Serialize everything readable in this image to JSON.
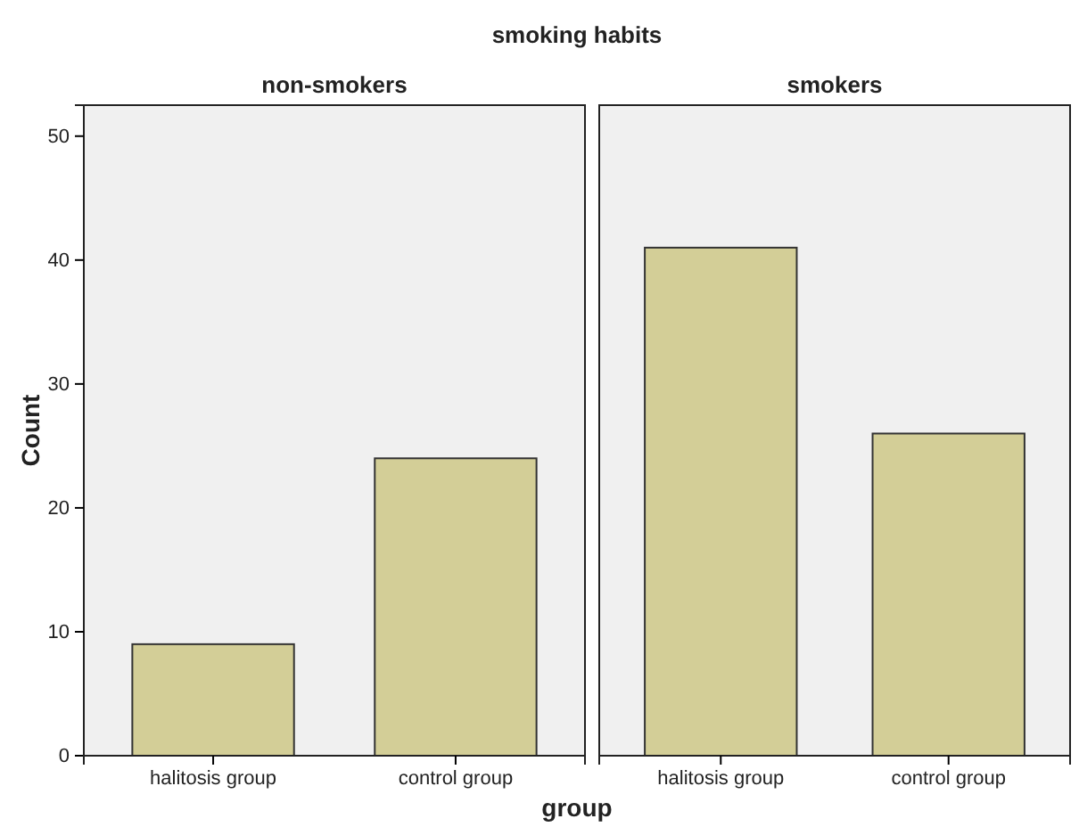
{
  "chart_data": [
    {
      "type": "bar",
      "title": "non-smokers",
      "annotations": [
        "smoking habits"
      ],
      "xlabel": "group",
      "ylabel": "Count",
      "categories": [
        "halitosis group",
        "control group"
      ],
      "values": [
        9,
        24
      ],
      "color": "#d3ce97",
      "ylim": [
        0,
        52.5
      ],
      "yticks": [
        0,
        10,
        20,
        30,
        40,
        50
      ],
      "grid": false
    },
    {
      "type": "bar",
      "title": "smokers",
      "categories": [
        "halitosis group",
        "control group"
      ],
      "values": [
        41,
        26
      ],
      "color": "#d3ce97",
      "ylim": [
        0,
        52.5
      ],
      "yticks": [
        0,
        10,
        20,
        30,
        40,
        50
      ],
      "grid": false,
      "tick_labels": "x"
    }
  ]
}
